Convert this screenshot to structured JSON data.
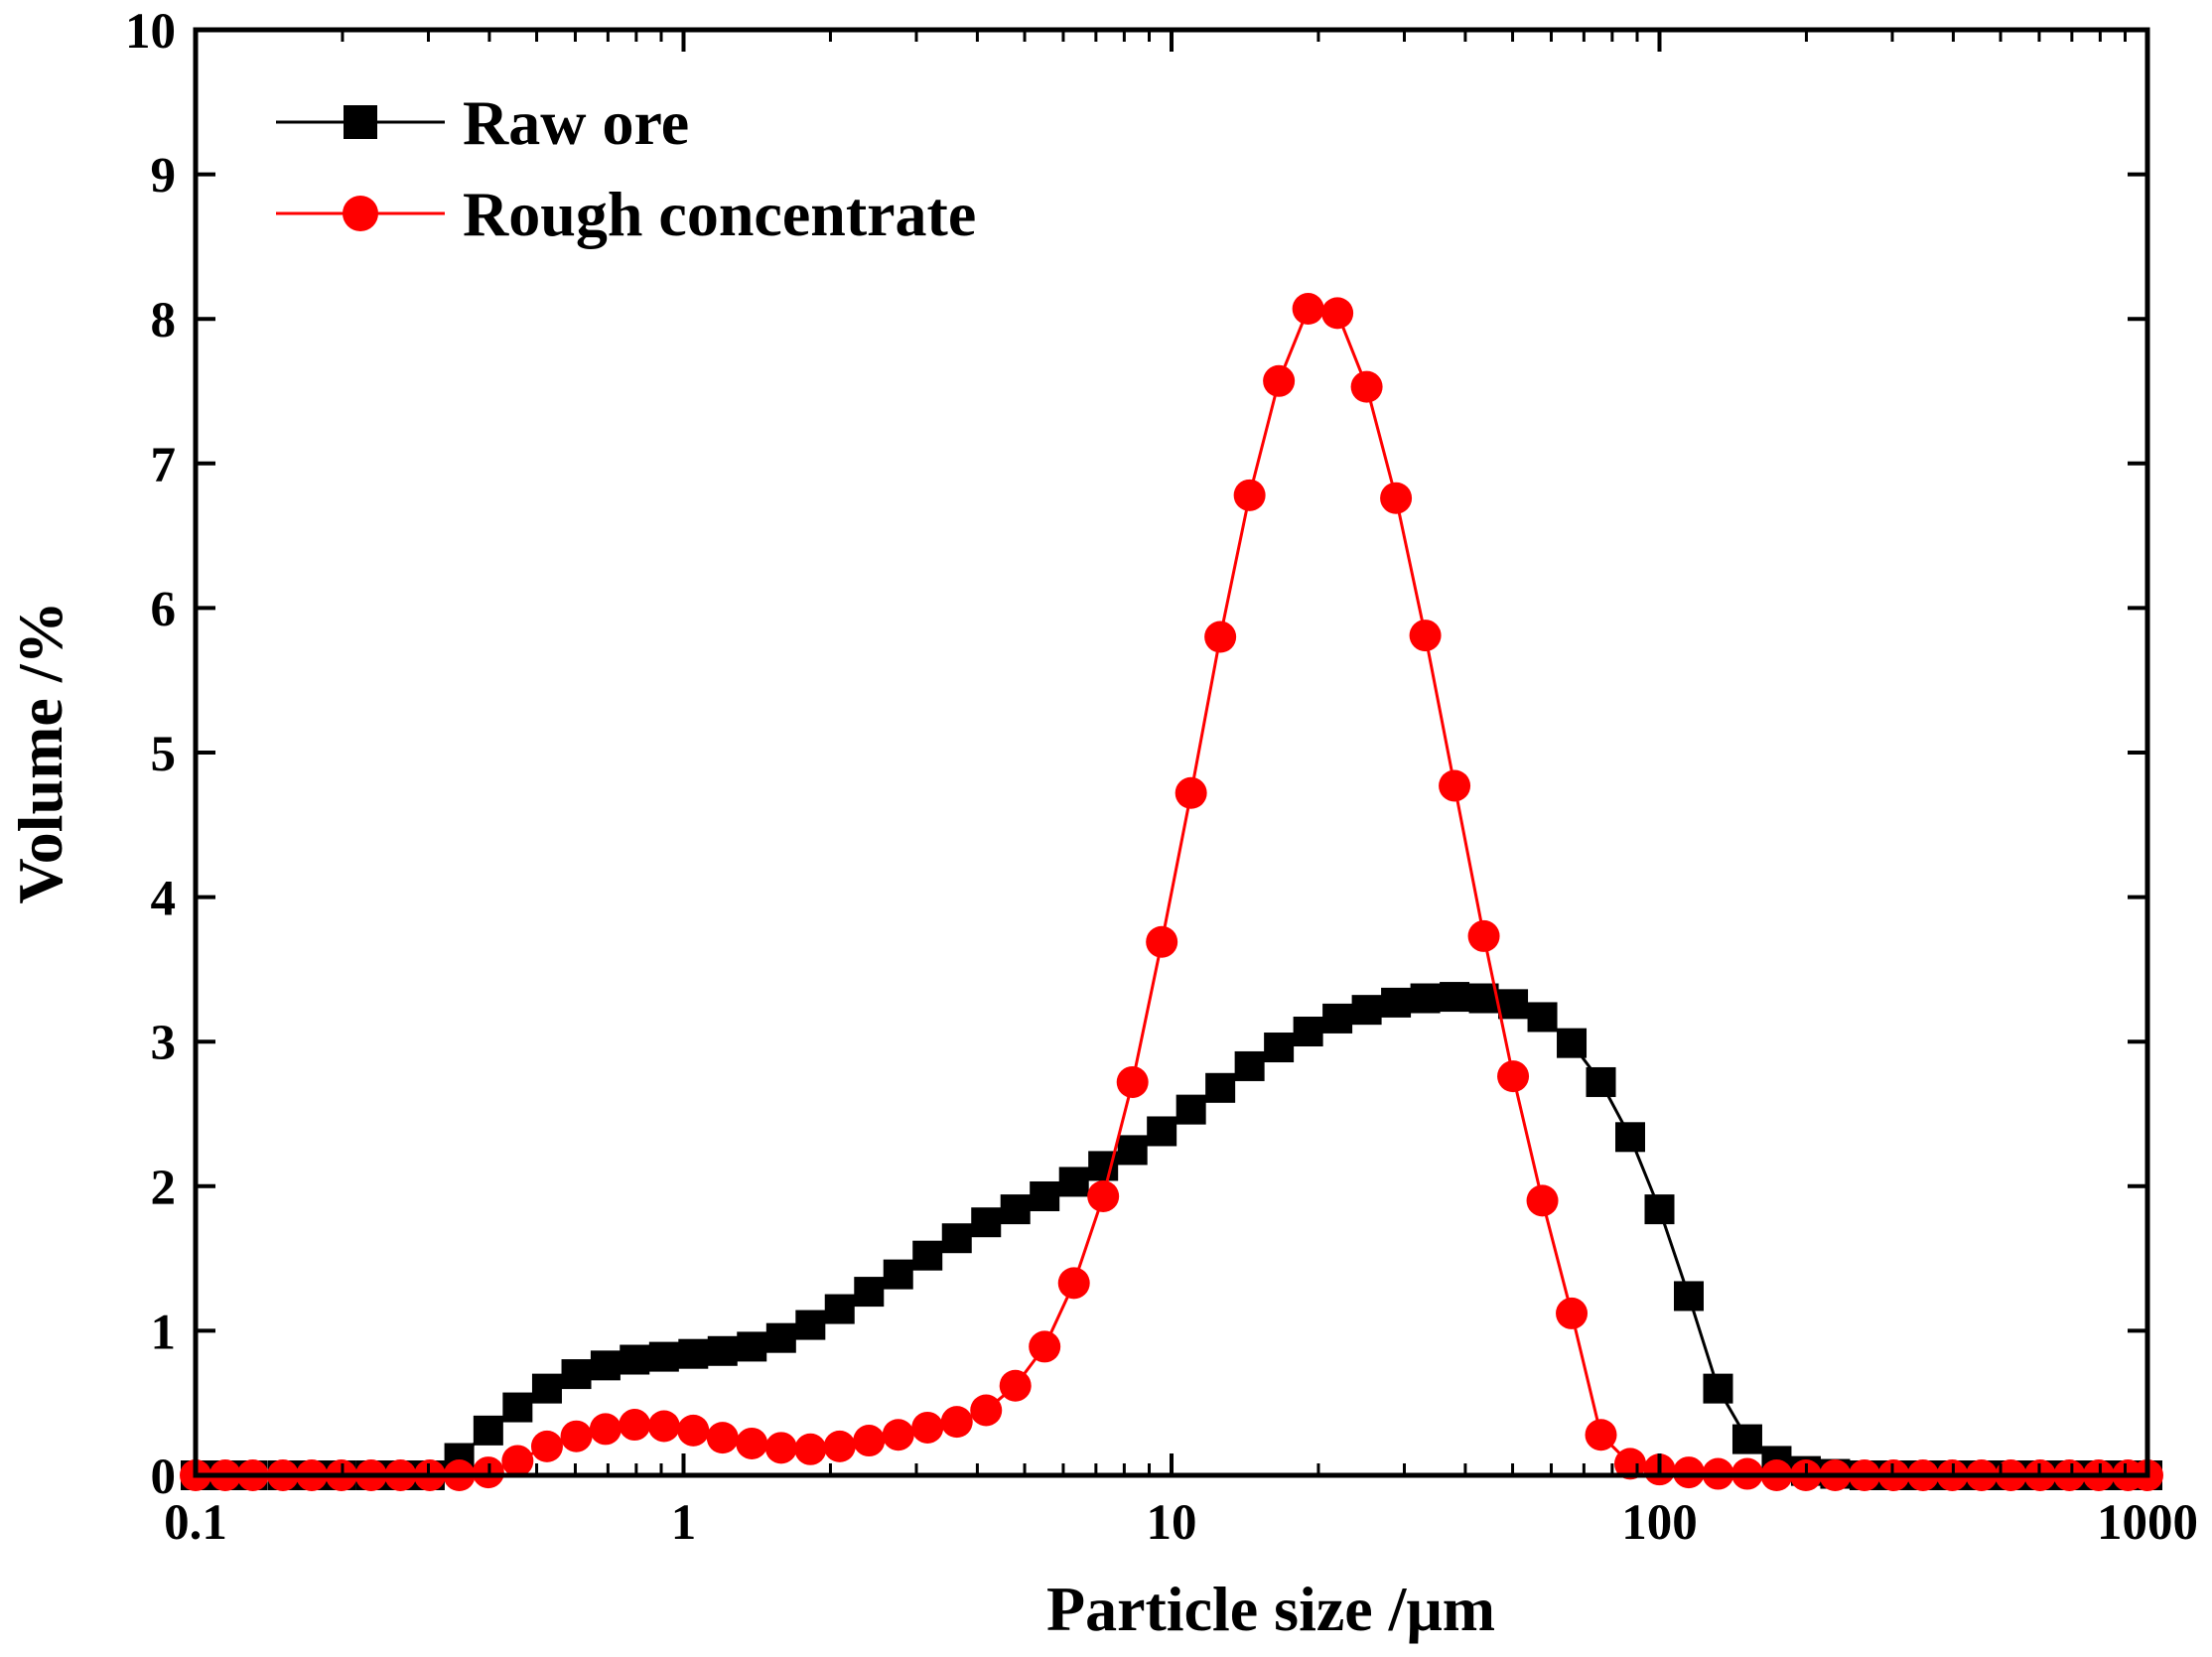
{
  "chart_data": {
    "type": "line",
    "xscale": "log",
    "xlim": [
      0.1,
      1000
    ],
    "ylim": [
      0,
      10
    ],
    "xlabel": "Particle size /μm",
    "ylabel": "Volume /%",
    "xtick_values": [
      0.1,
      1,
      10,
      100,
      1000
    ],
    "xtick_labels": [
      "0.1",
      "1",
      "10",
      "100",
      "1000"
    ],
    "ytick_values": [
      0,
      1,
      2,
      3,
      4,
      5,
      6,
      7,
      8,
      9,
      10
    ],
    "ytick_labels": [
      "0",
      "1",
      "2",
      "3",
      "4",
      "5",
      "6",
      "7",
      "8",
      "9",
      "10"
    ],
    "legend_position": "top-left",
    "series": [
      {
        "name": "Raw ore",
        "color": "#000000",
        "marker": "square",
        "x": [
          0.1,
          0.115,
          0.131,
          0.151,
          0.173,
          0.199,
          0.229,
          0.263,
          0.302,
          0.347,
          0.398,
          0.457,
          0.525,
          0.603,
          0.692,
          0.794,
          0.912,
          1.047,
          1.202,
          1.38,
          1.585,
          1.82,
          2.089,
          2.399,
          2.754,
          3.162,
          3.631,
          4.169,
          4.786,
          5.495,
          6.31,
          7.244,
          8.318,
          9.55,
          10.965,
          12.589,
          14.454,
          16.596,
          19.055,
          21.878,
          25.119,
          28.84,
          33.113,
          38.019,
          43.652,
          50.119,
          57.544,
          66.069,
          75.858,
          87.096,
          100,
          114.815,
          131.826,
          151.356,
          173.78,
          199.526,
          229.087,
          263.027,
          301.995,
          346.737,
          398.107,
          457.088,
          524.807,
          602.56,
          691.831,
          794.328,
          912.011,
          1000
        ],
        "y": [
          0,
          0,
          0,
          0,
          0,
          0,
          0,
          0,
          0,
          0.12,
          0.31,
          0.47,
          0.6,
          0.7,
          0.76,
          0.8,
          0.82,
          0.84,
          0.86,
          0.89,
          0.95,
          1.04,
          1.15,
          1.27,
          1.39,
          1.52,
          1.64,
          1.75,
          1.84,
          1.93,
          2.03,
          2.14,
          2.25,
          2.38,
          2.53,
          2.68,
          2.83,
          2.96,
          3.07,
          3.16,
          3.22,
          3.27,
          3.3,
          3.31,
          3.3,
          3.26,
          3.17,
          2.99,
          2.72,
          2.34,
          1.84,
          1.24,
          0.6,
          0.25,
          0.1,
          0.03,
          0.01,
          0,
          0,
          0,
          0,
          0,
          0,
          0,
          0,
          0,
          0,
          0
        ]
      },
      {
        "name": "Rough concentrate",
        "color": "#ff0000",
        "marker": "circle",
        "x": [
          0.1,
          0.115,
          0.131,
          0.151,
          0.173,
          0.199,
          0.229,
          0.263,
          0.302,
          0.347,
          0.398,
          0.457,
          0.525,
          0.603,
          0.692,
          0.794,
          0.912,
          1.047,
          1.202,
          1.38,
          1.585,
          1.82,
          2.089,
          2.399,
          2.754,
          3.162,
          3.631,
          4.169,
          4.786,
          5.495,
          6.31,
          7.244,
          8.318,
          9.55,
          10.965,
          12.589,
          14.454,
          16.596,
          19.055,
          21.878,
          25.119,
          28.84,
          33.113,
          38.019,
          43.652,
          50.119,
          57.544,
          66.069,
          75.858,
          87.096,
          100,
          114.815,
          131.826,
          151.356,
          173.78,
          199.526,
          229.087,
          263.027,
          301.995,
          346.737,
          398.107,
          457.088,
          524.807,
          602.56,
          691.831,
          794.328,
          912.011,
          1000
        ],
        "y": [
          0,
          0,
          0,
          0,
          0,
          0,
          0,
          0,
          0,
          0,
          0.02,
          0.1,
          0.2,
          0.27,
          0.32,
          0.35,
          0.34,
          0.31,
          0.26,
          0.22,
          0.19,
          0.18,
          0.2,
          0.24,
          0.28,
          0.33,
          0.37,
          0.45,
          0.62,
          0.89,
          1.33,
          1.93,
          2.72,
          3.69,
          4.72,
          5.8,
          6.78,
          7.57,
          8.07,
          8.04,
          7.53,
          6.76,
          5.81,
          4.77,
          3.73,
          2.76,
          1.9,
          1.12,
          0.28,
          0.08,
          0.04,
          0.02,
          0.01,
          0.01,
          0,
          0,
          0,
          0,
          0,
          0,
          0,
          0,
          0,
          0,
          0,
          0,
          0,
          0
        ]
      }
    ]
  }
}
